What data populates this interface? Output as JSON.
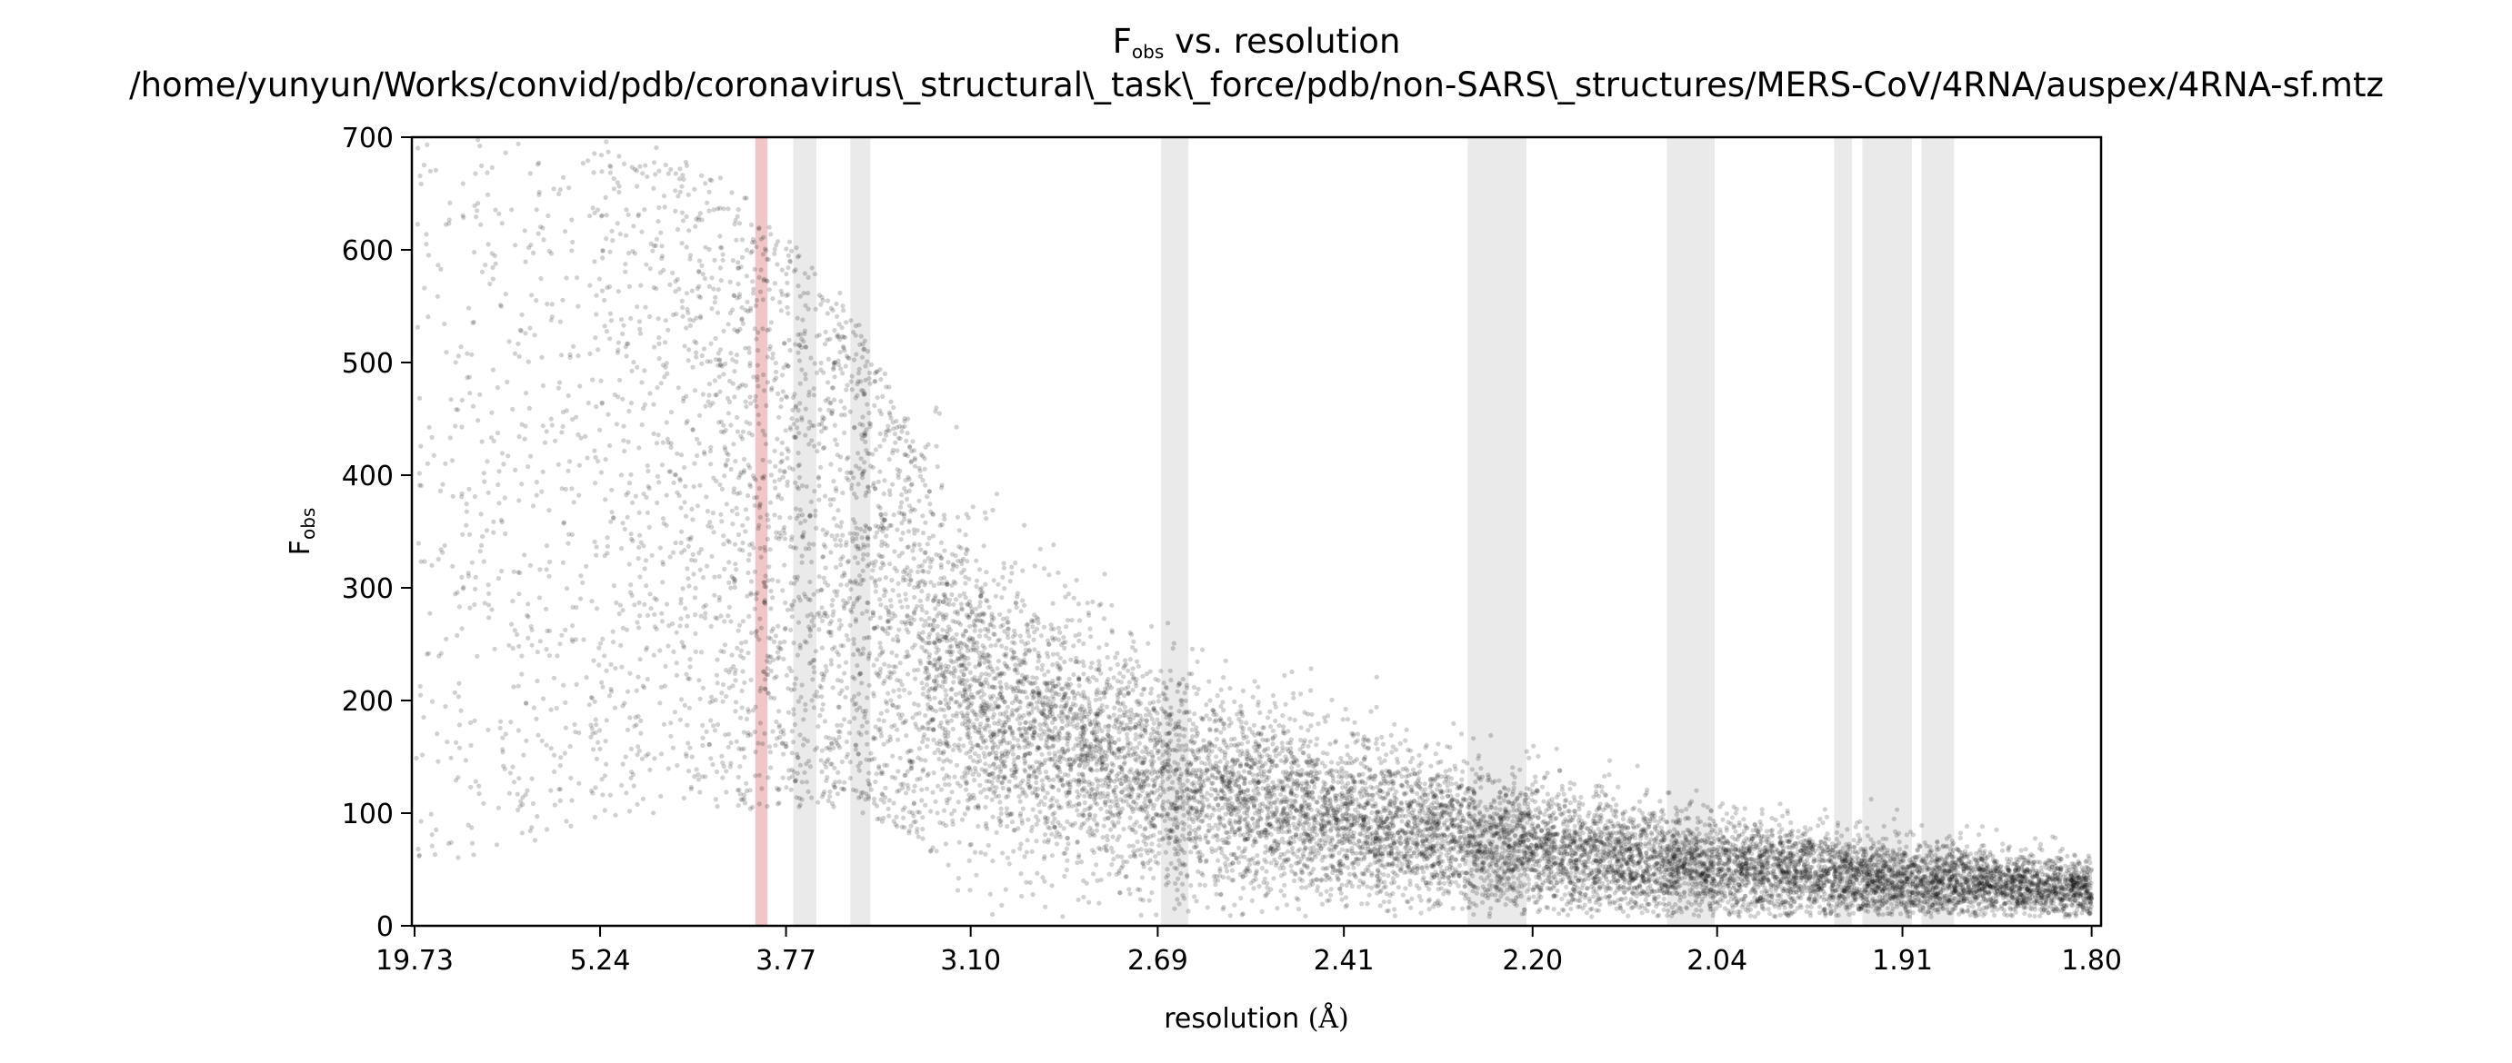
{
  "chart_data": {
    "type": "scatter",
    "title": {
      "main": "F",
      "main_sub": "obs",
      "main_rest": " vs. resolution",
      "path": "/home/yunyun/Works/convid/pdb/coronavirus\\_structural\\_task\\_force/pdb/non-SARS\\_structures/MERS-CoV/4RNA/auspex/4RNA-sf.mtz"
    },
    "xlabel": {
      "text": "resolution ",
      "unit": "(Å)"
    },
    "ylabel": {
      "main": "F",
      "sub": "obs"
    },
    "x_scale": "1/d^2",
    "x_tick_labels": [
      "19.73",
      "5.24",
      "3.77",
      "3.10",
      "2.69",
      "2.41",
      "2.20",
      "2.04",
      "1.91",
      "1.80"
    ],
    "x_ticks_angstrom": [
      19.73,
      5.24,
      3.77,
      3.1,
      2.69,
      2.41,
      2.2,
      2.04,
      1.91,
      1.8
    ],
    "xlim_angstrom": [
      22.0,
      1.795
    ],
    "y_ticks": [
      0,
      100,
      200,
      300,
      400,
      500,
      600,
      700
    ],
    "ylim": [
      0,
      700
    ],
    "grid": false,
    "legend": "none",
    "ice_ring_bands_angstrom": [
      {
        "from": 3.735,
        "to": 3.63,
        "highlight": false
      },
      {
        "from": 3.49,
        "to": 3.415,
        "highlight": false
      },
      {
        "from": 2.684,
        "to": 2.637,
        "highlight": false
      },
      {
        "from": 2.266,
        "to": 2.206,
        "highlight": false
      },
      {
        "from": 2.08,
        "to": 2.042,
        "highlight": false
      },
      {
        "from": 1.955,
        "to": 1.943,
        "highlight": false
      },
      {
        "from": 1.936,
        "to": 1.904,
        "highlight": false
      },
      {
        "from": 1.898,
        "to": 1.878,
        "highlight": false
      },
      {
        "from": 3.93,
        "to": 3.864,
        "highlight": true
      }
    ],
    "point_density_profile": {
      "resolution_angstrom": [
        19.73,
        8.0,
        5.24,
        4.2,
        3.77,
        3.5,
        3.1,
        2.69,
        2.41,
        2.2,
        2.04,
        1.91,
        1.8
      ],
      "median_fobs": [
        380,
        380,
        400,
        390,
        360,
        330,
        200,
        130,
        95,
        70,
        50,
        40,
        32
      ],
      "spread_fobs": [
        200,
        200,
        190,
        180,
        160,
        140,
        90,
        65,
        48,
        38,
        30,
        24,
        18
      ],
      "relative_density": [
        0.15,
        0.25,
        0.35,
        0.6,
        0.8,
        0.9,
        1.0,
        1.0,
        1.0,
        1.0,
        1.0,
        1.0,
        1.0
      ]
    },
    "colors": {
      "points": "#000000",
      "band": "#d9d9d9",
      "highlight_band": "#e8a0a0",
      "axes": "#000000"
    }
  }
}
